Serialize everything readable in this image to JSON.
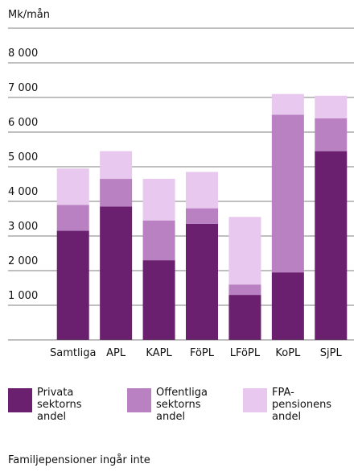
{
  "chart_data": {
    "type": "stacked_bar",
    "y_label": "Mk/mån",
    "categories": [
      "Samtliga",
      "APL",
      "KAPL",
      "FöPL",
      "LFöPL",
      "KoPL",
      "SjPL"
    ],
    "series": [
      {
        "name": "Privata sektorns andel",
        "color": "#6b1f6f",
        "values": [
          3150,
          3850,
          2300,
          3350,
          1300,
          1950,
          5450
        ]
      },
      {
        "name": "Offentliga sektorns andel",
        "color": "#b981c1",
        "values": [
          750,
          800,
          1150,
          450,
          300,
          4550,
          950
        ]
      },
      {
        "name": "FPA-pensionens andel",
        "color": "#e8c8ee",
        "values": [
          1050,
          800,
          1200,
          1050,
          1950,
          600,
          650
        ]
      }
    ],
    "ylim": [
      0,
      9000
    ],
    "yticks": [
      {
        "value": 1000,
        "label": "1 000"
      },
      {
        "value": 2000,
        "label": "2 000"
      },
      {
        "value": 3000,
        "label": "3 000"
      },
      {
        "value": 4000,
        "label": "4 000"
      },
      {
        "value": 5000,
        "label": "5 000"
      },
      {
        "value": 6000,
        "label": "6 000"
      },
      {
        "value": 7000,
        "label": "7 000"
      },
      {
        "value": 8000,
        "label": "8 000"
      }
    ],
    "grid": true,
    "footnote": "Familjepensioner ingår inte"
  }
}
